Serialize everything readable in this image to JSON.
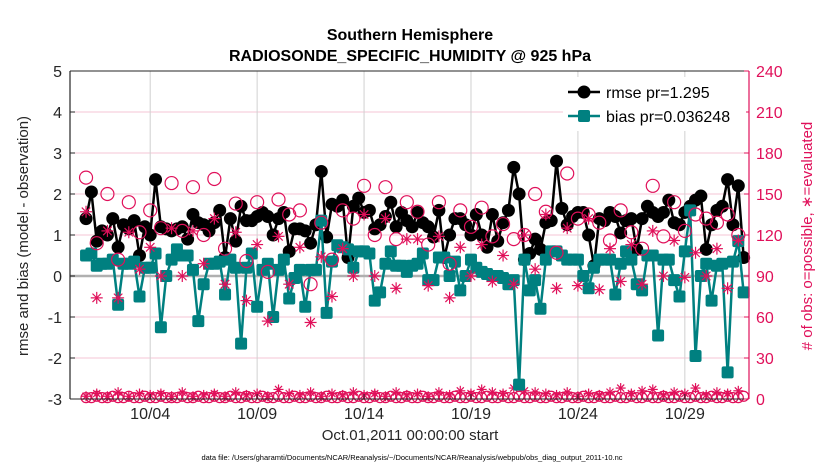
{
  "chart_data": {
    "type": "line",
    "title": [
      "Southern Hemisphere",
      "RADIOSONDE_SPECIFIC_HUMIDITY @ 925 hPa"
    ],
    "xlabel": "Oct.01,2011 00:00:00 start",
    "ylabel": "rmse and bias (model - observation)",
    "ylabel_right": "# of obs: o=possible, ∗=evaluated",
    "footnote": "data file: /Users/gharamti/Documents/NCAR/Reanalysis/~/Documents/NCAR/Reanalysis/webpub/obs_diag_output_2011-10.nc",
    "x_unit": "day of October 2011",
    "xlim": [
      0.25,
      32.0
    ],
    "ylim": [
      -3,
      5
    ],
    "ylim_right": [
      0,
      240
    ],
    "yticks": [
      -3,
      -2,
      -1,
      0,
      1,
      2,
      3,
      4,
      5
    ],
    "yticks_right": [
      0,
      30,
      60,
      90,
      120,
      150,
      180,
      210,
      240
    ],
    "xticks": [
      {
        "day": 4,
        "label": "10/04"
      },
      {
        "day": 9,
        "label": "10/09"
      },
      {
        "day": 14,
        "label": "10/14"
      },
      {
        "day": 19,
        "label": "10/19"
      },
      {
        "day": 24,
        "label": "10/24"
      },
      {
        "day": 29,
        "label": "10/29"
      }
    ],
    "grid": true,
    "legend": {
      "placement": "top-right",
      "entries": [
        "rmse pr=1.295",
        "bias pr=0.036248"
      ]
    },
    "colors": {
      "rmse": "#000000",
      "bias": "#008080",
      "obs": "#e0105a",
      "zero": "#b0b0b0",
      "grid_h": "#f4c6d6",
      "grid_v": "#d0d0d0"
    },
    "series": [
      {
        "name": "rmse",
        "x_start": 1,
        "x_step": 0.25,
        "values": [
          1.4,
          2.05,
          0.85,
          1.1,
          1.0,
          1.4,
          0.7,
          1.25,
          1.15,
          1.35,
          0.5,
          1.2,
          1.0,
          2.35,
          1.2,
          1.15,
          1.1,
          1.15,
          1.2,
          0.9,
          1.5,
          1.3,
          1.25,
          1.1,
          1.3,
          1.6,
          0.45,
          1.4,
          0.85,
          1.7,
          1.35,
          1.35,
          1.45,
          1.55,
          1.45,
          1.0,
          1.4,
          1.55,
          0.6,
          1.15,
          1.15,
          1.1,
          0.8,
          1.25,
          2.55,
          0.95,
          1.75,
          1.7,
          1.85,
          0.45,
          1.7,
          1.9,
          1.55,
          1.6,
          1.15,
          1.25,
          1.45,
          1.8,
          1.2,
          1.55,
          1.35,
          1.2,
          1.55,
          1.3,
          1.2,
          0.95,
          1.6,
          0.45,
          1.0,
          1.4,
          1.4,
          1.25,
          1.0,
          1.5,
          1.0,
          0.7,
          1.5,
          0.85,
          1.3,
          1.6,
          2.65,
          2.0,
          0.4,
          0.55,
          0.9,
          0.65,
          1.3,
          1.35,
          2.8,
          1.65,
          1.25,
          1.45,
          1.55,
          1.55,
          1.0,
          0.25,
          1.4,
          1.35,
          1.55,
          1.45,
          1.05,
          1.35,
          1.4,
          0.65,
          1.4,
          1.7,
          1.55,
          1.45,
          1.55,
          1.85,
          1.3,
          1.25,
          1.55,
          1.7,
          1.85,
          1.95,
          0.65,
          1.25,
          1.6,
          1.7,
          2.35,
          1.25,
          2.2,
          0.45
        ]
      },
      {
        "name": "bias",
        "x_start": 1,
        "x_step": 0.25,
        "values": [
          0.5,
          0.55,
          0.25,
          0.3,
          0.3,
          0.4,
          -0.7,
          0.3,
          0.3,
          0.35,
          -0.5,
          0.2,
          0.2,
          0.55,
          -1.25,
          0.0,
          0.4,
          0.65,
          0.5,
          0.5,
          0.15,
          -1.1,
          -0.2,
          0.3,
          0.3,
          0.35,
          -0.45,
          0.4,
          0.2,
          -1.65,
          0.2,
          0.55,
          -0.75,
          0.15,
          0.3,
          -1.0,
          0.15,
          0.4,
          -0.55,
          -0.05,
          0.15,
          -0.75,
          0.15,
          0.15,
          1.35,
          -0.9,
          0.35,
          0.75,
          0.7,
          0.65,
          0.2,
          0.6,
          0.6,
          0.55,
          -0.6,
          -0.4,
          0.3,
          0.6,
          0.25,
          0.25,
          0.1,
          0.25,
          0.3,
          0.55,
          -0.1,
          -0.1,
          0.45,
          0.45,
          0.0,
          0.35,
          -0.35,
          0.0,
          0.4,
          0.2,
          0.1,
          0.05,
          0.0,
          0.0,
          -0.05,
          -0.2,
          -0.1,
          -2.65,
          0.4,
          -0.35,
          -0.1,
          -0.8,
          0.4,
          0.6,
          0.6,
          0.5,
          0.4,
          0.4,
          0.4,
          0.0,
          -0.3,
          0.2,
          0.4,
          0.4,
          0.4,
          -0.45,
          0.3,
          0.6,
          0.4,
          -0.2,
          -0.35,
          0.5,
          0.5,
          -1.45,
          0.4,
          0.4,
          -0.1,
          -0.5,
          0.6,
          1.6,
          -1.95,
          0.0,
          0.3,
          -0.6,
          0.25,
          0.3,
          -2.35,
          0.35,
          0.85,
          -0.4
        ]
      },
      {
        "name": "possible",
        "axis": "right",
        "x_start": 1,
        "x_step": 0.5,
        "values": [
          162,
          114,
          150,
          102,
          144,
          122,
          138,
          125,
          158,
          123,
          155,
          120,
          161,
          110,
          143,
          101,
          144,
          93,
          146,
          135,
          138,
          84,
          129,
          102,
          138,
          132,
          156,
          120,
          155,
          117,
          144,
          137,
          113,
          144,
          99,
          138,
          126,
          140,
          119,
          128,
          117,
          120,
          150,
          137,
          107,
          165,
          132,
          135,
          129,
          116,
          138,
          122,
          110,
          156,
          119,
          144,
          123,
          135,
          132,
          129,
          135,
          120
        ]
      },
      {
        "name": "evaluated",
        "axis": "right",
        "x_start": 1,
        "x_step": 0.5,
        "values": [
          137,
          74,
          123,
          74,
          122,
          95,
          111,
          90,
          125,
          90,
          123,
          99,
          132,
          84,
          122,
          72,
          113,
          57,
          119,
          84,
          111,
          56,
          104,
          75,
          110,
          90,
          135,
          90,
          132,
          81,
          117,
          117,
          83,
          119,
          74,
          111,
          90,
          113,
          86,
          105,
          84,
          120,
          95,
          135,
          81,
          125,
          83,
          132,
          80,
          110,
          86,
          113,
          84,
          123,
          90,
          116,
          89,
          107,
          90,
          110,
          81,
          116
        ]
      },
      {
        "name": "possible_low",
        "axis": "right",
        "x_start": 1,
        "x_step": 0.25,
        "values": [
          1,
          1,
          2,
          1,
          1,
          2,
          1,
          1,
          2,
          1,
          1,
          2,
          1,
          1,
          2,
          1,
          1,
          1,
          2,
          1,
          1,
          2,
          1,
          1,
          2,
          1,
          1,
          2,
          1,
          1,
          2,
          1,
          1,
          2,
          1,
          1,
          2,
          1,
          1,
          2,
          1,
          1,
          2,
          1,
          1,
          2,
          1,
          1,
          2,
          1,
          1,
          2,
          1,
          1,
          2,
          1,
          1,
          2,
          1,
          1,
          2,
          1,
          1,
          2,
          1,
          1,
          2,
          1,
          1,
          2,
          1,
          1,
          2,
          1,
          1,
          2,
          1,
          1,
          2,
          1,
          1,
          2,
          1,
          1,
          2,
          1,
          1,
          2,
          1,
          1,
          2,
          1,
          1,
          2,
          1,
          1,
          2,
          1,
          1,
          2,
          1,
          1,
          2,
          1,
          1,
          2,
          1,
          1,
          2,
          1,
          1,
          2,
          1,
          1,
          2,
          1,
          1,
          2,
          1,
          1,
          2,
          1,
          1,
          2
        ]
      },
      {
        "name": "evaluated_low",
        "axis": "right",
        "x_start": 1,
        "x_step": 0.5,
        "values": [
          2,
          4,
          2,
          5,
          2,
          4,
          3,
          4,
          2,
          5,
          2,
          3,
          4,
          2,
          5,
          3,
          4,
          2,
          7,
          4,
          3,
          5,
          2,
          4,
          3,
          5,
          3,
          4,
          2,
          5,
          3,
          4,
          2,
          5,
          3,
          6,
          4,
          7,
          5,
          4,
          8,
          6,
          5,
          4,
          3,
          5,
          2,
          4,
          3,
          5,
          8,
          4,
          6,
          7,
          3,
          5,
          4,
          8,
          3,
          5,
          4,
          6
        ]
      }
    ]
  }
}
